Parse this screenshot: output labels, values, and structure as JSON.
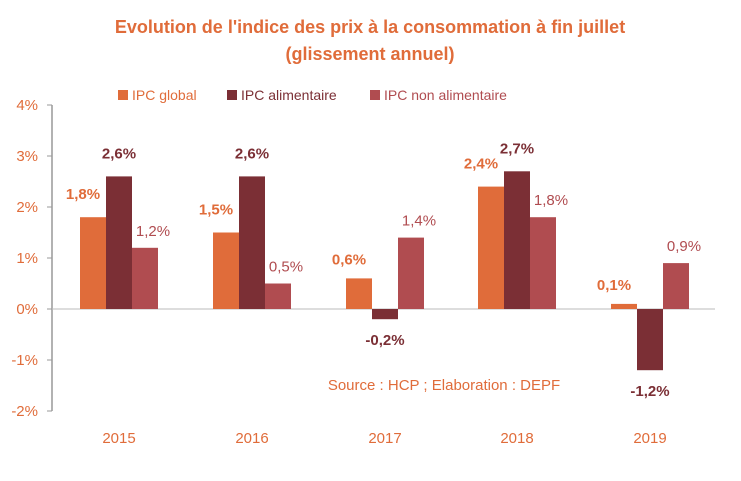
{
  "chart_data": {
    "type": "bar",
    "title": "Evolution de l'indice des prix à la consommation à fin juillet",
    "subtitle": "(glissement annuel)",
    "categories": [
      "2015",
      "2016",
      "2017",
      "2018",
      "2019"
    ],
    "series": [
      {
        "name": "IPC global",
        "values": [
          1.8,
          1.5,
          0.6,
          2.4,
          0.1
        ],
        "labels": [
          "1,8%",
          "1,5%",
          "0,6%",
          "2,4%",
          "0,1%"
        ],
        "color": "#E06C3A"
      },
      {
        "name": "IPC alimentaire",
        "values": [
          2.6,
          2.6,
          -0.2,
          2.7,
          -1.2
        ],
        "labels": [
          "2,6%",
          "2,6%",
          "-0,2%",
          "2,7%",
          "-1,2%"
        ],
        "color": "#7B2F35"
      },
      {
        "name": "IPC non alimentaire",
        "values": [
          1.2,
          0.5,
          1.4,
          1.8,
          0.9
        ],
        "labels": [
          "1,2%",
          "0,5%",
          "1,4%",
          "1,8%",
          "0,9%"
        ],
        "color": "#B04C50"
      }
    ],
    "ylim": [
      -2,
      4
    ],
    "yticks": [
      "-2%",
      "-1%",
      "0%",
      "1%",
      "2%",
      "3%",
      "4%"
    ],
    "legend": "top",
    "grid": false,
    "annotation": "Source : HCP ;  Elaboration : DEPF"
  }
}
